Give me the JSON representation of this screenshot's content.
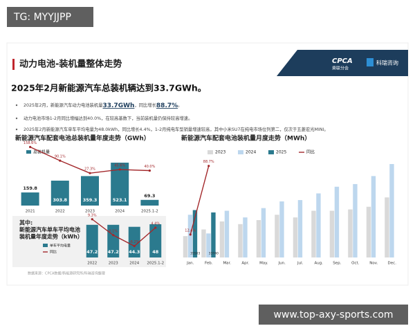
{
  "watermark_top": "TG: MYYJJPP",
  "header": {
    "title": "动力电池-装机量整体走势",
    "logo_cpca": "CPCA",
    "logo_cpca_sub": "乘联分会",
    "logo_kerui": "科瑞咨询"
  },
  "headline": "2025年2月新能源汽车总装机辆达到33.7GWh。",
  "bullets": [
    [
      "2025年2月，新能源汽车动力电池装机量",
      "33.7GWh",
      "，同比增长",
      "88.7%",
      "。"
    ],
    [
      "动力电池市场1-2月同比增幅达到40.0%，在较高基数下，当前装机量仍保持较高增速。"
    ],
    [
      "2025年2月新能源汽车单车平均电量为48.0kWh，同比增长4.4%，1-2月纯电车型销量增速较高，其中小米SU7在纯电市场位列第二，仅次于五菱宏光MINI。"
    ]
  ],
  "chart_data": [
    {
      "type": "bar",
      "title": "新能源汽车配套电池总装机量年度走势（GWh）",
      "categories": [
        "2021",
        "2022",
        "2023",
        "2024",
        "2025.1-2"
      ],
      "series": [
        {
          "name": "总装机量",
          "color": "#2b7a8e",
          "values": [
            159.8,
            303.8,
            359.3,
            523.1,
            69.3
          ]
        },
        {
          "type": "line",
          "axis": "y2",
          "color": "#a3282b",
          "values": [
            158.6,
            90.1,
            27.3,
            45.6,
            40.0
          ],
          "value_labels": [
            "158.6%",
            "90.1%",
            "27.3%",
            "45.6%",
            "40.0%"
          ]
        }
      ]
    },
    {
      "type": "bar",
      "title": [
        "其中:",
        "新能源汽车单车平均电池",
        "装机量年度走势（kWh）"
      ],
      "categories": [
        "2022",
        "2023",
        "2024",
        "2025.1-2"
      ],
      "series": [
        {
          "name": "单车平均电量",
          "color": "#2b7a8e",
          "values": [
            47.2,
            47.2,
            44.3,
            48.0
          ]
        },
        {
          "name": "同比",
          "type": "line",
          "axis": "y2",
          "color": "#a3282b",
          "values": [
            9.3,
            0.1,
            -6.2,
            4.4
          ],
          "value_labels": [
            "9.3%",
            "0.1%",
            "-6.2%",
            "4.4%"
          ]
        }
      ]
    },
    {
      "type": "bar",
      "title": "新能源汽车配套电池装机量月度走势（MWh）",
      "categories": [
        "Jan.",
        "Feb.",
        "Mar.",
        "Apr.",
        "May.",
        "Jun.",
        "Jul.",
        "Aug.",
        "Sep.",
        "Oct.",
        "Nov.",
        "Dec."
      ],
      "series": [
        {
          "name": "2023",
          "color": "#d9d9d9",
          "values": [
            16000,
            21000,
            27000,
            25000,
            28000,
            32000,
            30000,
            35000,
            35000,
            36000,
            38000,
            45000
          ]
        },
        {
          "name": "2024",
          "color": "#bdd7ee",
          "values": [
            32000,
            18000,
            35000,
            30000,
            37000,
            42000,
            43000,
            48000,
            53000,
            55000,
            61000,
            70000
          ]
        },
        {
          "name": "2025",
          "color": "#2b7a8e",
          "values": [
            35503,
            33740,
            null,
            null,
            null,
            null,
            null,
            null,
            null,
            null,
            null,
            null
          ]
        },
        {
          "name": "同比",
          "type": "line",
          "axis": "y2",
          "color": "#a3282b",
          "values": [
            12.4,
            88.7,
            null,
            null,
            null,
            null,
            null,
            null,
            null,
            null,
            null,
            null
          ],
          "value_labels": [
            "12.4%",
            "88.7%",
            null,
            null,
            null,
            null,
            null,
            null,
            null,
            null,
            null,
            null
          ]
        }
      ]
    }
  ],
  "source": "数据来源：CPCA数据/新能源研究所/科瑞咨询整理",
  "watermark_bottom": "www.top-axy-sports.com"
}
